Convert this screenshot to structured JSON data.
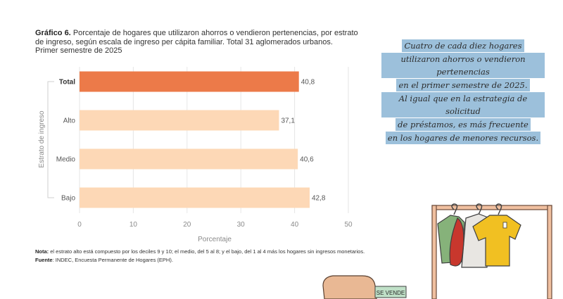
{
  "title": {
    "prefix": "Gráfico 6.",
    "text": "Porcentaje de hogares que utilizaron ahorros o vendieron pertenencias, por estrato de ingreso, según escala de ingreso per cápita familiar. Total 31 aglomerados urbanos.",
    "subtitle": "Primer semestre de 2025"
  },
  "chart_data": {
    "type": "bar",
    "orientation": "horizontal",
    "categories": [
      "Total",
      "Alto",
      "Medio",
      "Bajo"
    ],
    "values": [
      40.8,
      37.1,
      40.6,
      42.8
    ],
    "value_labels": [
      "40,8",
      "37,1",
      "40,6",
      "42,8"
    ],
    "xlabel": "Porcentaje",
    "ylabel": "Estrato de ingreso",
    "xlim": [
      0,
      50
    ],
    "xticks": [
      0,
      10,
      20,
      30,
      40,
      50
    ],
    "grid": true,
    "colors": {
      "highlight": "#ec7a49",
      "bar": "#fdd8b6",
      "grid": "#e6e6e6"
    },
    "highlight_category": "Total"
  },
  "notes": {
    "nota_label": "Nota:",
    "nota_text": "el estrato alto está compuesto por los deciles 9 y 10; el medio, del 5 al 8; y el bajo, del 1 al 4 más los hogares sin ingresos monetarios.",
    "fuente_label": "Fuente",
    "fuente_text": ": INDEC, Encuesta Permanente de Hogares (EPH)."
  },
  "callout": {
    "lines": [
      "Cuatro de cada diez hogares",
      "utilizaron ahorros o vendieron pertenencias",
      "en el primer semestre de 2025.",
      "Al igual que en la estrategia de solicitud",
      "de préstamos, es más frecuente",
      "en los hogares de menores recursos."
    ],
    "color": "#9cc0db"
  },
  "illustration": {
    "sign_text": "SE VENDE"
  }
}
